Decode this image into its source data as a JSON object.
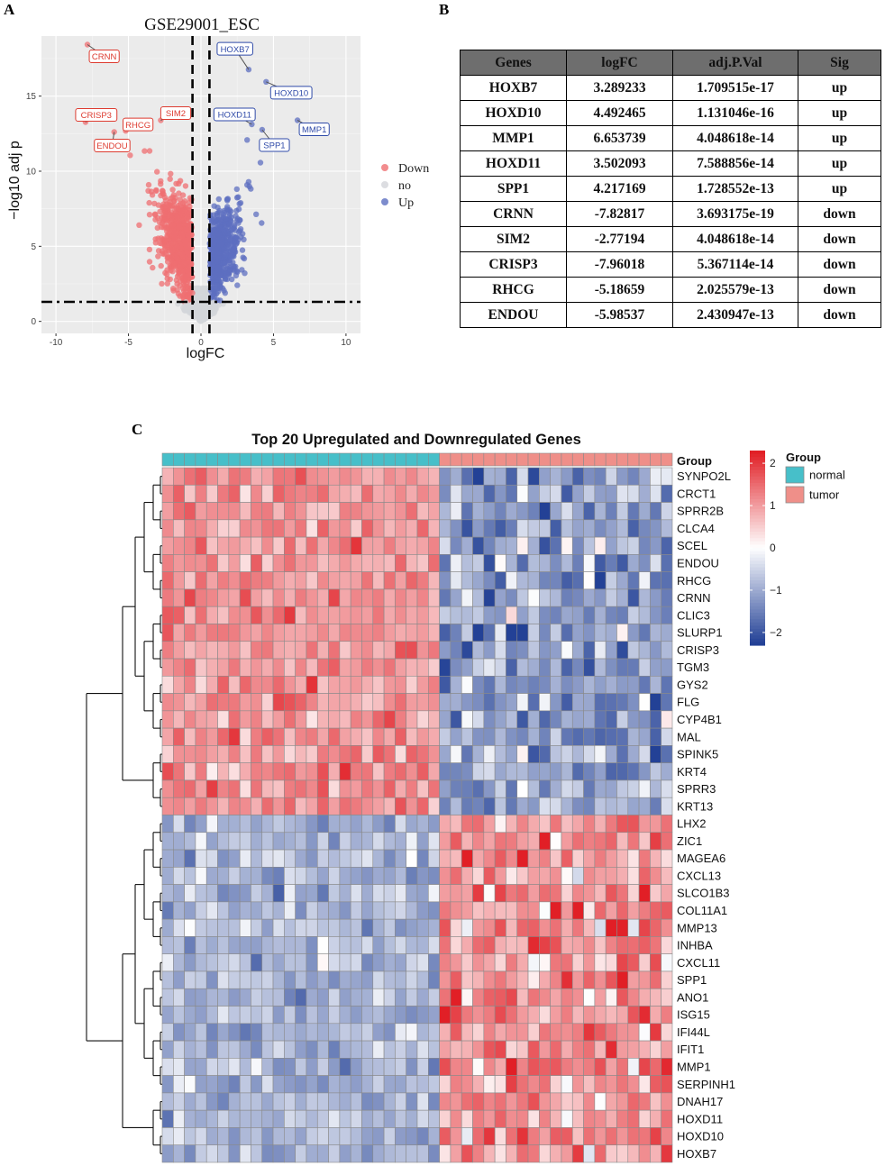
{
  "panels": {
    "a": "A",
    "b": "B",
    "c": "C"
  },
  "chart_data": [
    {
      "type": "scatter",
      "title": "GSE29001_ESC",
      "xlabel": "logFC",
      "ylabel": "−log10 adj p",
      "xlim": [
        -11,
        11
      ],
      "ylim": [
        -0.8,
        19
      ],
      "xticks": [
        "-10",
        "-5",
        "0",
        "5",
        "10"
      ],
      "xtick_values": [
        -10,
        -5,
        0,
        5,
        10
      ],
      "yticks": [
        "0",
        "5",
        "10",
        "15"
      ],
      "ytick_values": [
        0,
        5,
        10,
        15
      ],
      "fc_threshold": 0.585,
      "p_threshold": 1.3,
      "legend": [
        "Down",
        "no",
        "Up"
      ],
      "colors": {
        "Down": "#ef6f72",
        "no": "#d3d5da",
        "Up": "#5d6fc0"
      },
      "labeled_points": [
        {
          "gene": "HOXB7",
          "x": 3.289,
          "y": 16.77,
          "sig": "Up"
        },
        {
          "gene": "HOXD10",
          "x": 4.492,
          "y": 15.95,
          "sig": "Up"
        },
        {
          "gene": "MMP1",
          "x": 6.654,
          "y": 13.39,
          "sig": "Up"
        },
        {
          "gene": "HOXD11",
          "x": 3.502,
          "y": 13.12,
          "sig": "Up"
        },
        {
          "gene": "SPP1",
          "x": 4.217,
          "y": 12.76,
          "sig": "Up"
        },
        {
          "gene": "CRNN",
          "x": -7.828,
          "y": 18.43,
          "sig": "Down"
        },
        {
          "gene": "SIM2",
          "x": -2.772,
          "y": 13.39,
          "sig": "Down"
        },
        {
          "gene": "CRISP3",
          "x": -7.96,
          "y": 13.27,
          "sig": "Down"
        },
        {
          "gene": "RHCG",
          "x": -5.187,
          "y": 12.69,
          "sig": "Down"
        },
        {
          "gene": "ENDOU",
          "x": -5.985,
          "y": 12.61,
          "sig": "Down"
        }
      ]
    },
    {
      "type": "table",
      "columns": [
        "Genes",
        "logFC",
        "adj.P.Val",
        "Sig"
      ],
      "rows": [
        [
          "HOXB7",
          "3.289233",
          "1.709515e-17",
          "up"
        ],
        [
          "HOXD10",
          "4.492465",
          "1.131046e-16",
          "up"
        ],
        [
          "MMP1",
          "6.653739",
          "4.048618e-14",
          "up"
        ],
        [
          "HOXD11",
          "3.502093",
          "7.588856e-14",
          "up"
        ],
        [
          "SPP1",
          "4.217169",
          "1.728552e-13",
          "up"
        ],
        [
          "CRNN",
          "-7.82817",
          "3.693175e-19",
          "down"
        ],
        [
          "SIM2",
          "-2.77194",
          "4.048618e-14",
          "down"
        ],
        [
          "CRISP3",
          "-7.96018",
          "5.367114e-14",
          "down"
        ],
        [
          "RHCG",
          "-5.18659",
          "2.025579e-13",
          "down"
        ],
        [
          "ENDOU",
          "-5.98537",
          "2.430947e-13",
          "down"
        ]
      ]
    },
    {
      "type": "heatmap",
      "title": "Top 20 Upregulated and Downregulated Genes",
      "group_label": "Group",
      "n_normal": 25,
      "n_tumor": 21,
      "legend_title": "Group",
      "legend_groups": [
        {
          "name": "normal",
          "color": "#47bfc9"
        },
        {
          "name": "tumor",
          "color": "#ef8f89"
        }
      ],
      "colorbar_ticks": [
        "2",
        "1",
        "0",
        "−1",
        "−2"
      ],
      "colorbar_values": [
        2,
        1,
        0,
        -1,
        -2
      ],
      "down_genes": [
        "SYNPO2L",
        "CRCT1",
        "SPRR2B",
        "CLCA4",
        "SCEL",
        "ENDOU",
        "RHCG",
        "CRNN",
        "CLIC3",
        "SLURP1",
        "CRISP3",
        "TGM3",
        "GYS2",
        "FLG",
        "CYP4B1",
        "MAL",
        "SPINK5",
        "KRT4",
        "SPRR3",
        "KRT13"
      ],
      "up_genes": [
        "LHX2",
        "ZIC1",
        "MAGEA6",
        "CXCL13",
        "SLCO1B3",
        "COL11A1",
        "MMP13",
        "INHBA",
        "CXCL11",
        "SPP1",
        "ANO1",
        "ISG15",
        "IFI44L",
        "IFIT1",
        "MMP1",
        "SERPINH1",
        "DNAH17",
        "HOXD11",
        "HOXD10",
        "HOXB7"
      ],
      "typical_values": {
        "down_in_normal": 1.1,
        "down_in_tumor": -1.1,
        "up_in_normal": -0.9,
        "up_in_tumor": 1.1
      },
      "range": [
        -2.3,
        2.3
      ]
    }
  ]
}
